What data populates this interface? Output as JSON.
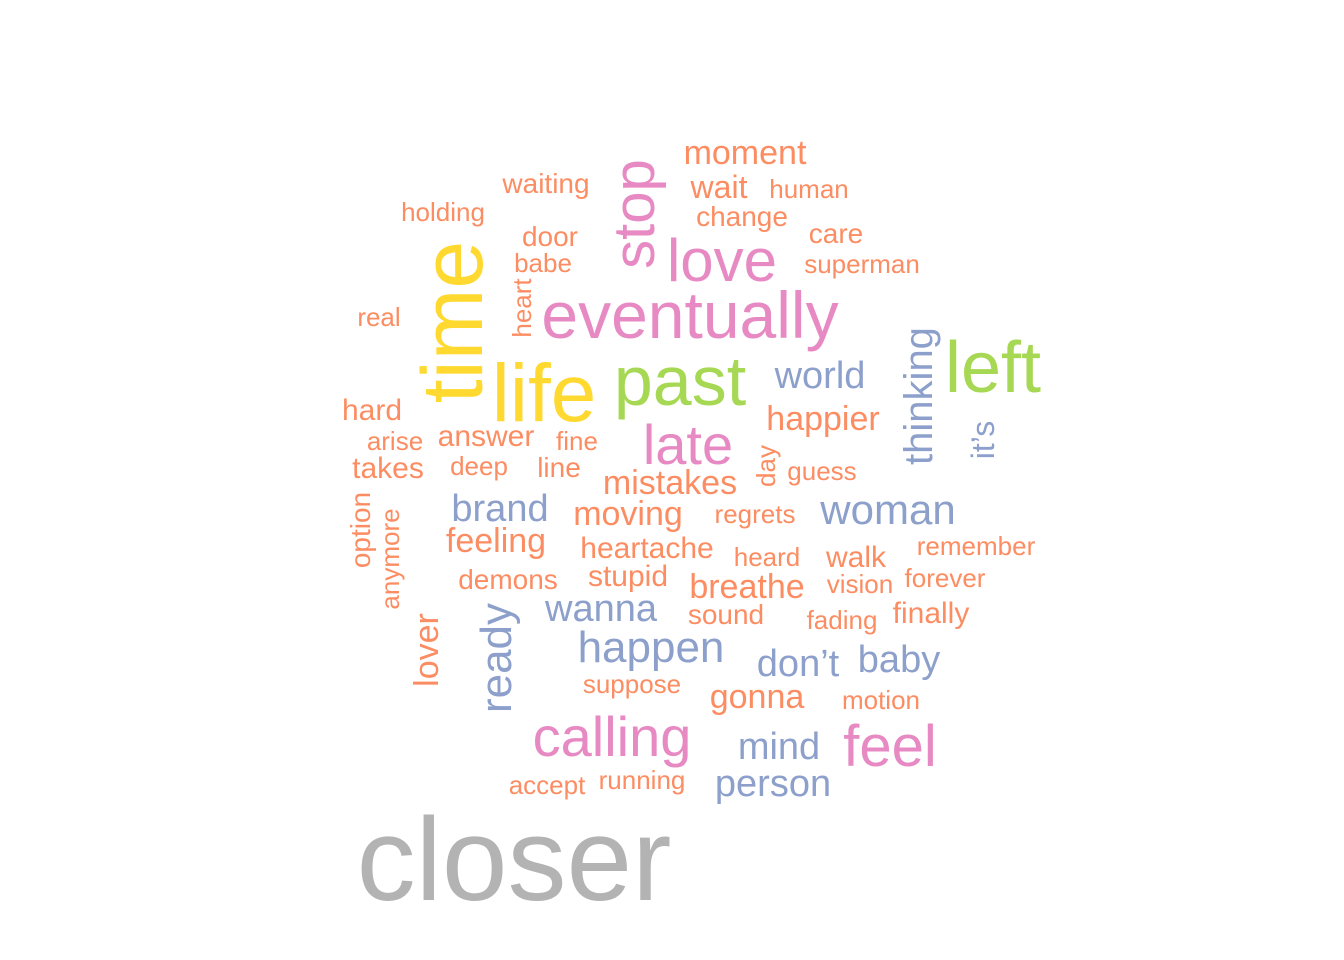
{
  "colors": {
    "grey": "#b3b3b3",
    "yellow": "#ffd92f",
    "green": "#a6d854",
    "pink": "#e78ac3",
    "blue": "#8da0cb",
    "orange": "#fc8d62"
  },
  "words": [
    {
      "text": "closer",
      "color": "grey"
    },
    {
      "text": "time",
      "color": "yellow"
    },
    {
      "text": "life",
      "color": "yellow"
    },
    {
      "text": "past",
      "color": "green"
    },
    {
      "text": "left",
      "color": "green"
    },
    {
      "text": "eventually",
      "color": "pink"
    },
    {
      "text": "love",
      "color": "pink"
    },
    {
      "text": "stop",
      "color": "pink"
    },
    {
      "text": "late",
      "color": "pink"
    },
    {
      "text": "calling",
      "color": "pink"
    },
    {
      "text": "feel",
      "color": "pink"
    },
    {
      "text": "world",
      "color": "blue"
    },
    {
      "text": "thinking",
      "color": "blue"
    },
    {
      "text": "it’s",
      "color": "blue"
    },
    {
      "text": "brand",
      "color": "blue"
    },
    {
      "text": "woman",
      "color": "blue"
    },
    {
      "text": "wanna",
      "color": "blue"
    },
    {
      "text": "ready",
      "color": "blue"
    },
    {
      "text": "happen",
      "color": "blue"
    },
    {
      "text": "don’t",
      "color": "blue"
    },
    {
      "text": "baby",
      "color": "blue"
    },
    {
      "text": "mind",
      "color": "blue"
    },
    {
      "text": "person",
      "color": "blue"
    },
    {
      "text": "moment",
      "color": "orange"
    },
    {
      "text": "waiting",
      "color": "orange"
    },
    {
      "text": "wait",
      "color": "orange"
    },
    {
      "text": "human",
      "color": "orange"
    },
    {
      "text": "holding",
      "color": "orange"
    },
    {
      "text": "change",
      "color": "orange"
    },
    {
      "text": "door",
      "color": "orange"
    },
    {
      "text": "care",
      "color": "orange"
    },
    {
      "text": "babe",
      "color": "orange"
    },
    {
      "text": "superman",
      "color": "orange"
    },
    {
      "text": "heart",
      "color": "orange"
    },
    {
      "text": "real",
      "color": "orange"
    },
    {
      "text": "happier",
      "color": "orange"
    },
    {
      "text": "hard",
      "color": "orange"
    },
    {
      "text": "answer",
      "color": "orange"
    },
    {
      "text": "arise",
      "color": "orange"
    },
    {
      "text": "fine",
      "color": "orange"
    },
    {
      "text": "takes",
      "color": "orange"
    },
    {
      "text": "deep",
      "color": "orange"
    },
    {
      "text": "line",
      "color": "orange"
    },
    {
      "text": "mistakes",
      "color": "orange"
    },
    {
      "text": "day",
      "color": "orange"
    },
    {
      "text": "guess",
      "color": "orange"
    },
    {
      "text": "option",
      "color": "orange"
    },
    {
      "text": "moving",
      "color": "orange"
    },
    {
      "text": "regrets",
      "color": "orange"
    },
    {
      "text": "anymore",
      "color": "orange"
    },
    {
      "text": "feeling",
      "color": "orange"
    },
    {
      "text": "heartache",
      "color": "orange"
    },
    {
      "text": "remember",
      "color": "orange"
    },
    {
      "text": "heard",
      "color": "orange"
    },
    {
      "text": "walk",
      "color": "orange"
    },
    {
      "text": "demons",
      "color": "orange"
    },
    {
      "text": "stupid",
      "color": "orange"
    },
    {
      "text": "breathe",
      "color": "orange"
    },
    {
      "text": "vision",
      "color": "orange"
    },
    {
      "text": "forever",
      "color": "orange"
    },
    {
      "text": "sound",
      "color": "orange"
    },
    {
      "text": "fading",
      "color": "orange"
    },
    {
      "text": "finally",
      "color": "orange"
    },
    {
      "text": "lover",
      "color": "orange"
    },
    {
      "text": "suppose",
      "color": "orange"
    },
    {
      "text": "gonna",
      "color": "orange"
    },
    {
      "text": "motion",
      "color": "orange"
    },
    {
      "text": "accept",
      "color": "orange"
    },
    {
      "text": "running",
      "color": "orange"
    }
  ]
}
